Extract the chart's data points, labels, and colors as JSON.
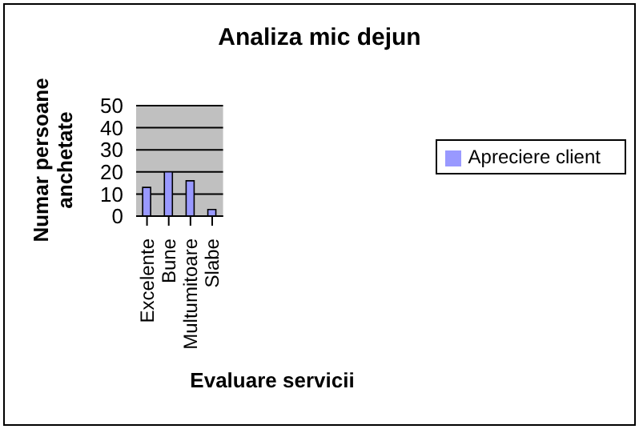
{
  "chart_data": {
    "type": "bar",
    "title": "Analiza mic dejun",
    "xlabel": "Evaluare servicii",
    "ylabel": "Numar persoane anchetate",
    "categories": [
      "Excelente",
      "Bune",
      "Multumitoare",
      "Slabe"
    ],
    "series": [
      {
        "name": "Apreciere client",
        "color": "#9999ff",
        "values": [
          13,
          20,
          16,
          3
        ]
      }
    ],
    "ylim": [
      0,
      50
    ],
    "yticks": [
      0,
      10,
      20,
      30,
      40,
      50
    ],
    "grid": "y",
    "legend": "right"
  }
}
